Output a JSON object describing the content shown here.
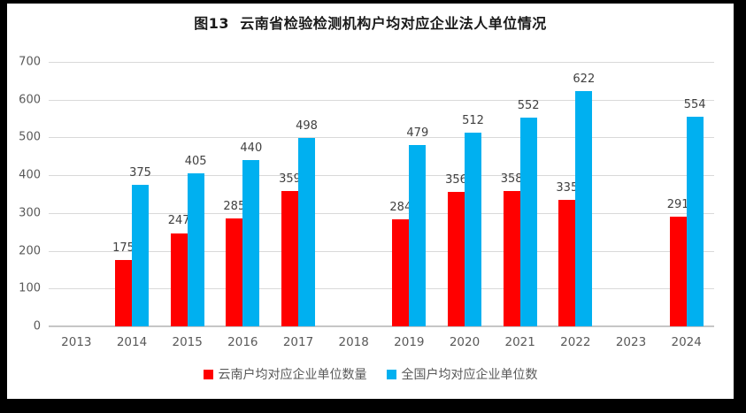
{
  "frame": {
    "border_color": "#000000",
    "background": "#ffffff"
  },
  "chart_data": {
    "type": "bar",
    "title": "图13  云南省检验检测机构户均对应企业法人单位情况",
    "categories": [
      "2013",
      "2014",
      "2015",
      "2016",
      "2017",
      "2018",
      "2019",
      "2020",
      "2021",
      "2022",
      "2023",
      "2024"
    ],
    "series": [
      {
        "name": "云南户均对应企业单位数量",
        "color": "#ff0000",
        "values": [
          null,
          175,
          247,
          285,
          359,
          null,
          284,
          356,
          358,
          335,
          null,
          291
        ]
      },
      {
        "name": "全国户均对应企业单位数",
        "color": "#00b0f0",
        "values": [
          null,
          375,
          405,
          440,
          498,
          null,
          479,
          512,
          552,
          622,
          null,
          554
        ]
      }
    ],
    "xlabel": "",
    "ylabel": "",
    "ylim": [
      0,
      700
    ],
    "ytick_step": 100,
    "grid": true,
    "legend_position": "bottom",
    "data_labels": true,
    "grid_color": "#d9d9d9",
    "axis_line_color": "#c6c6c6",
    "tick_label_color": "#595959",
    "data_label_color": "#404040"
  }
}
